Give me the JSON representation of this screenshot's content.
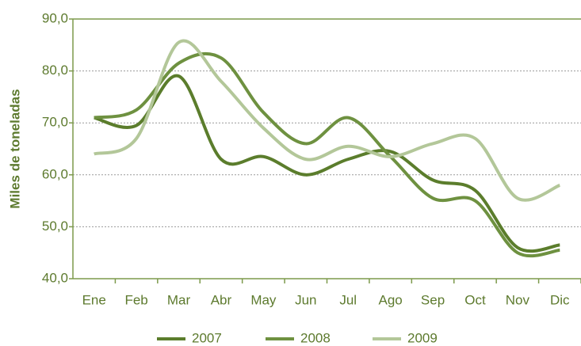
{
  "chart_data": {
    "type": "line",
    "y_label": "Miles de toneladas",
    "categories": [
      "Ene",
      "Feb",
      "Mar",
      "Abr",
      "May",
      "Jun",
      "Jul",
      "Ago",
      "Sep",
      "Oct",
      "Nov",
      "Dic"
    ],
    "series": [
      {
        "name": "2007",
        "color": "#5b7d2c",
        "values": [
          71,
          69.5,
          79,
          63,
          63.5,
          60,
          63,
          64.5,
          59,
          57,
          46,
          46.5
        ]
      },
      {
        "name": "2008",
        "color": "#6e9140",
        "values": [
          71,
          72.5,
          81.5,
          82.5,
          72,
          66,
          71,
          63.5,
          55.5,
          55,
          45,
          45.5
        ]
      },
      {
        "name": "2009",
        "color": "#b3c799",
        "values": [
          64,
          67,
          85.5,
          78,
          69,
          63,
          65.5,
          63.5,
          66,
          67,
          55.5,
          58
        ]
      }
    ],
    "ylim": [
      40,
      90
    ],
    "yticks": [
      {
        "value": 40,
        "label": "40,0"
      },
      {
        "value": 50,
        "label": "50,0"
      },
      {
        "value": 60,
        "label": "60,0"
      },
      {
        "value": 70,
        "label": "70,0"
      },
      {
        "value": 80,
        "label": "80,0"
      },
      {
        "value": 90,
        "label": "90,0"
      }
    ],
    "grid": true,
    "legend": "bottom"
  }
}
